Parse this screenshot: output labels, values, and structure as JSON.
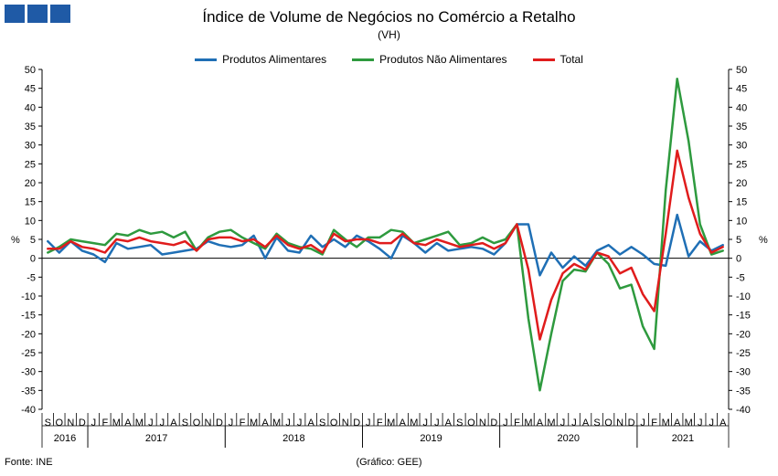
{
  "header": {
    "title": "Índice de Volume de Negócios no Comércio a Retalho",
    "subtitle": "(VH)"
  },
  "footer": {
    "source": "Fonte: INE",
    "credit": "(Gráfico: GEE)"
  },
  "chart_data": {
    "type": "line",
    "title": "Índice de Volume de Negócios no Comércio a Retalho",
    "subtitle": "(VH)",
    "ylabel": "%",
    "ylim": [
      -40,
      50
    ],
    "yticks": [
      50,
      45,
      40,
      35,
      30,
      25,
      20,
      15,
      10,
      5,
      0,
      -5,
      -10,
      -15,
      -20,
      -25,
      -30,
      -35,
      -40
    ],
    "grid": false,
    "legend_position": "top-center",
    "x": [
      "S",
      "O",
      "N",
      "D",
      "J",
      "F",
      "M",
      "A",
      "M",
      "J",
      "J",
      "A",
      "S",
      "O",
      "N",
      "D",
      "J",
      "F",
      "M",
      "A",
      "M",
      "J",
      "J",
      "A",
      "S",
      "O",
      "N",
      "D",
      "J",
      "F",
      "M",
      "A",
      "M",
      "J",
      "J",
      "A",
      "S",
      "O",
      "N",
      "D",
      "J",
      "F",
      "M",
      "A",
      "M",
      "J",
      "J",
      "A",
      "S",
      "O",
      "N",
      "D",
      "J",
      "F",
      "M",
      "A",
      "M",
      "J",
      "J",
      "A"
    ],
    "years": [
      {
        "label": "2016",
        "start": 0,
        "end": 3
      },
      {
        "label": "2017",
        "start": 4,
        "end": 15
      },
      {
        "label": "2018",
        "start": 16,
        "end": 27
      },
      {
        "label": "2019",
        "start": 28,
        "end": 39
      },
      {
        "label": "2020",
        "start": 40,
        "end": 51
      },
      {
        "label": "2021",
        "start": 52,
        "end": 59
      }
    ],
    "series": [
      {
        "name": "Produtos Alimentares",
        "color": "#1f6fb5",
        "values": [
          4.5,
          1.5,
          4.5,
          2.0,
          1.0,
          -1.0,
          4.0,
          2.5,
          3.0,
          3.5,
          1.0,
          1.5,
          2.0,
          2.5,
          4.5,
          3.5,
          3.0,
          3.5,
          6.0,
          0.0,
          5.5,
          2.0,
          1.5,
          6.0,
          3.0,
          5.0,
          3.0,
          6.0,
          4.5,
          2.5,
          0.0,
          6.0,
          4.0,
          1.5,
          4.0,
          2.0,
          2.5,
          3.0,
          2.5,
          1.0,
          4.0,
          9.0,
          9.0,
          -4.5,
          1.5,
          -2.5,
          0.5,
          -2.0,
          2.0,
          3.5,
          1.0,
          3.0,
          1.0,
          -1.5,
          -2.0,
          11.5,
          0.5,
          4.5,
          2.0,
          3.5
        ]
      },
      {
        "name": "Produtos Não Alimentares",
        "color": "#2e9a3e",
        "values": [
          1.5,
          3.0,
          5.0,
          4.5,
          4.0,
          3.5,
          6.5,
          6.0,
          7.5,
          6.5,
          7.0,
          5.5,
          7.0,
          2.0,
          5.5,
          7.0,
          7.5,
          5.5,
          4.0,
          2.5,
          6.5,
          4.0,
          3.0,
          2.5,
          1.0,
          7.5,
          5.0,
          3.0,
          5.5,
          5.5,
          7.5,
          7.0,
          4.0,
          5.0,
          6.0,
          7.0,
          3.5,
          4.0,
          5.5,
          4.0,
          5.0,
          9.0,
          -16.0,
          -35.0,
          -20.0,
          -6.0,
          -3.0,
          -3.5,
          1.5,
          -1.5,
          -8.0,
          -7.0,
          -18.0,
          -24.0,
          18.0,
          47.5,
          31.0,
          9.0,
          1.0,
          2.0
        ]
      },
      {
        "name": "Total",
        "color": "#e01c1c",
        "values": [
          2.5,
          2.5,
          4.5,
          3.0,
          2.5,
          1.5,
          5.0,
          4.5,
          5.5,
          4.5,
          4.0,
          3.5,
          4.5,
          2.0,
          5.0,
          5.5,
          5.5,
          4.5,
          5.0,
          3.0,
          6.0,
          3.5,
          2.5,
          3.5,
          1.5,
          6.5,
          4.5,
          5.0,
          5.0,
          4.0,
          4.0,
          6.5,
          4.0,
          3.5,
          5.0,
          4.0,
          3.0,
          3.5,
          4.0,
          2.5,
          4.0,
          9.0,
          -3.0,
          -21.5,
          -11.0,
          -4.0,
          -1.5,
          -3.0,
          1.5,
          0.5,
          -4.0,
          -2.5,
          -9.5,
          -14.0,
          6.5,
          28.5,
          16.0,
          6.5,
          1.5,
          3.0
        ]
      }
    ]
  }
}
